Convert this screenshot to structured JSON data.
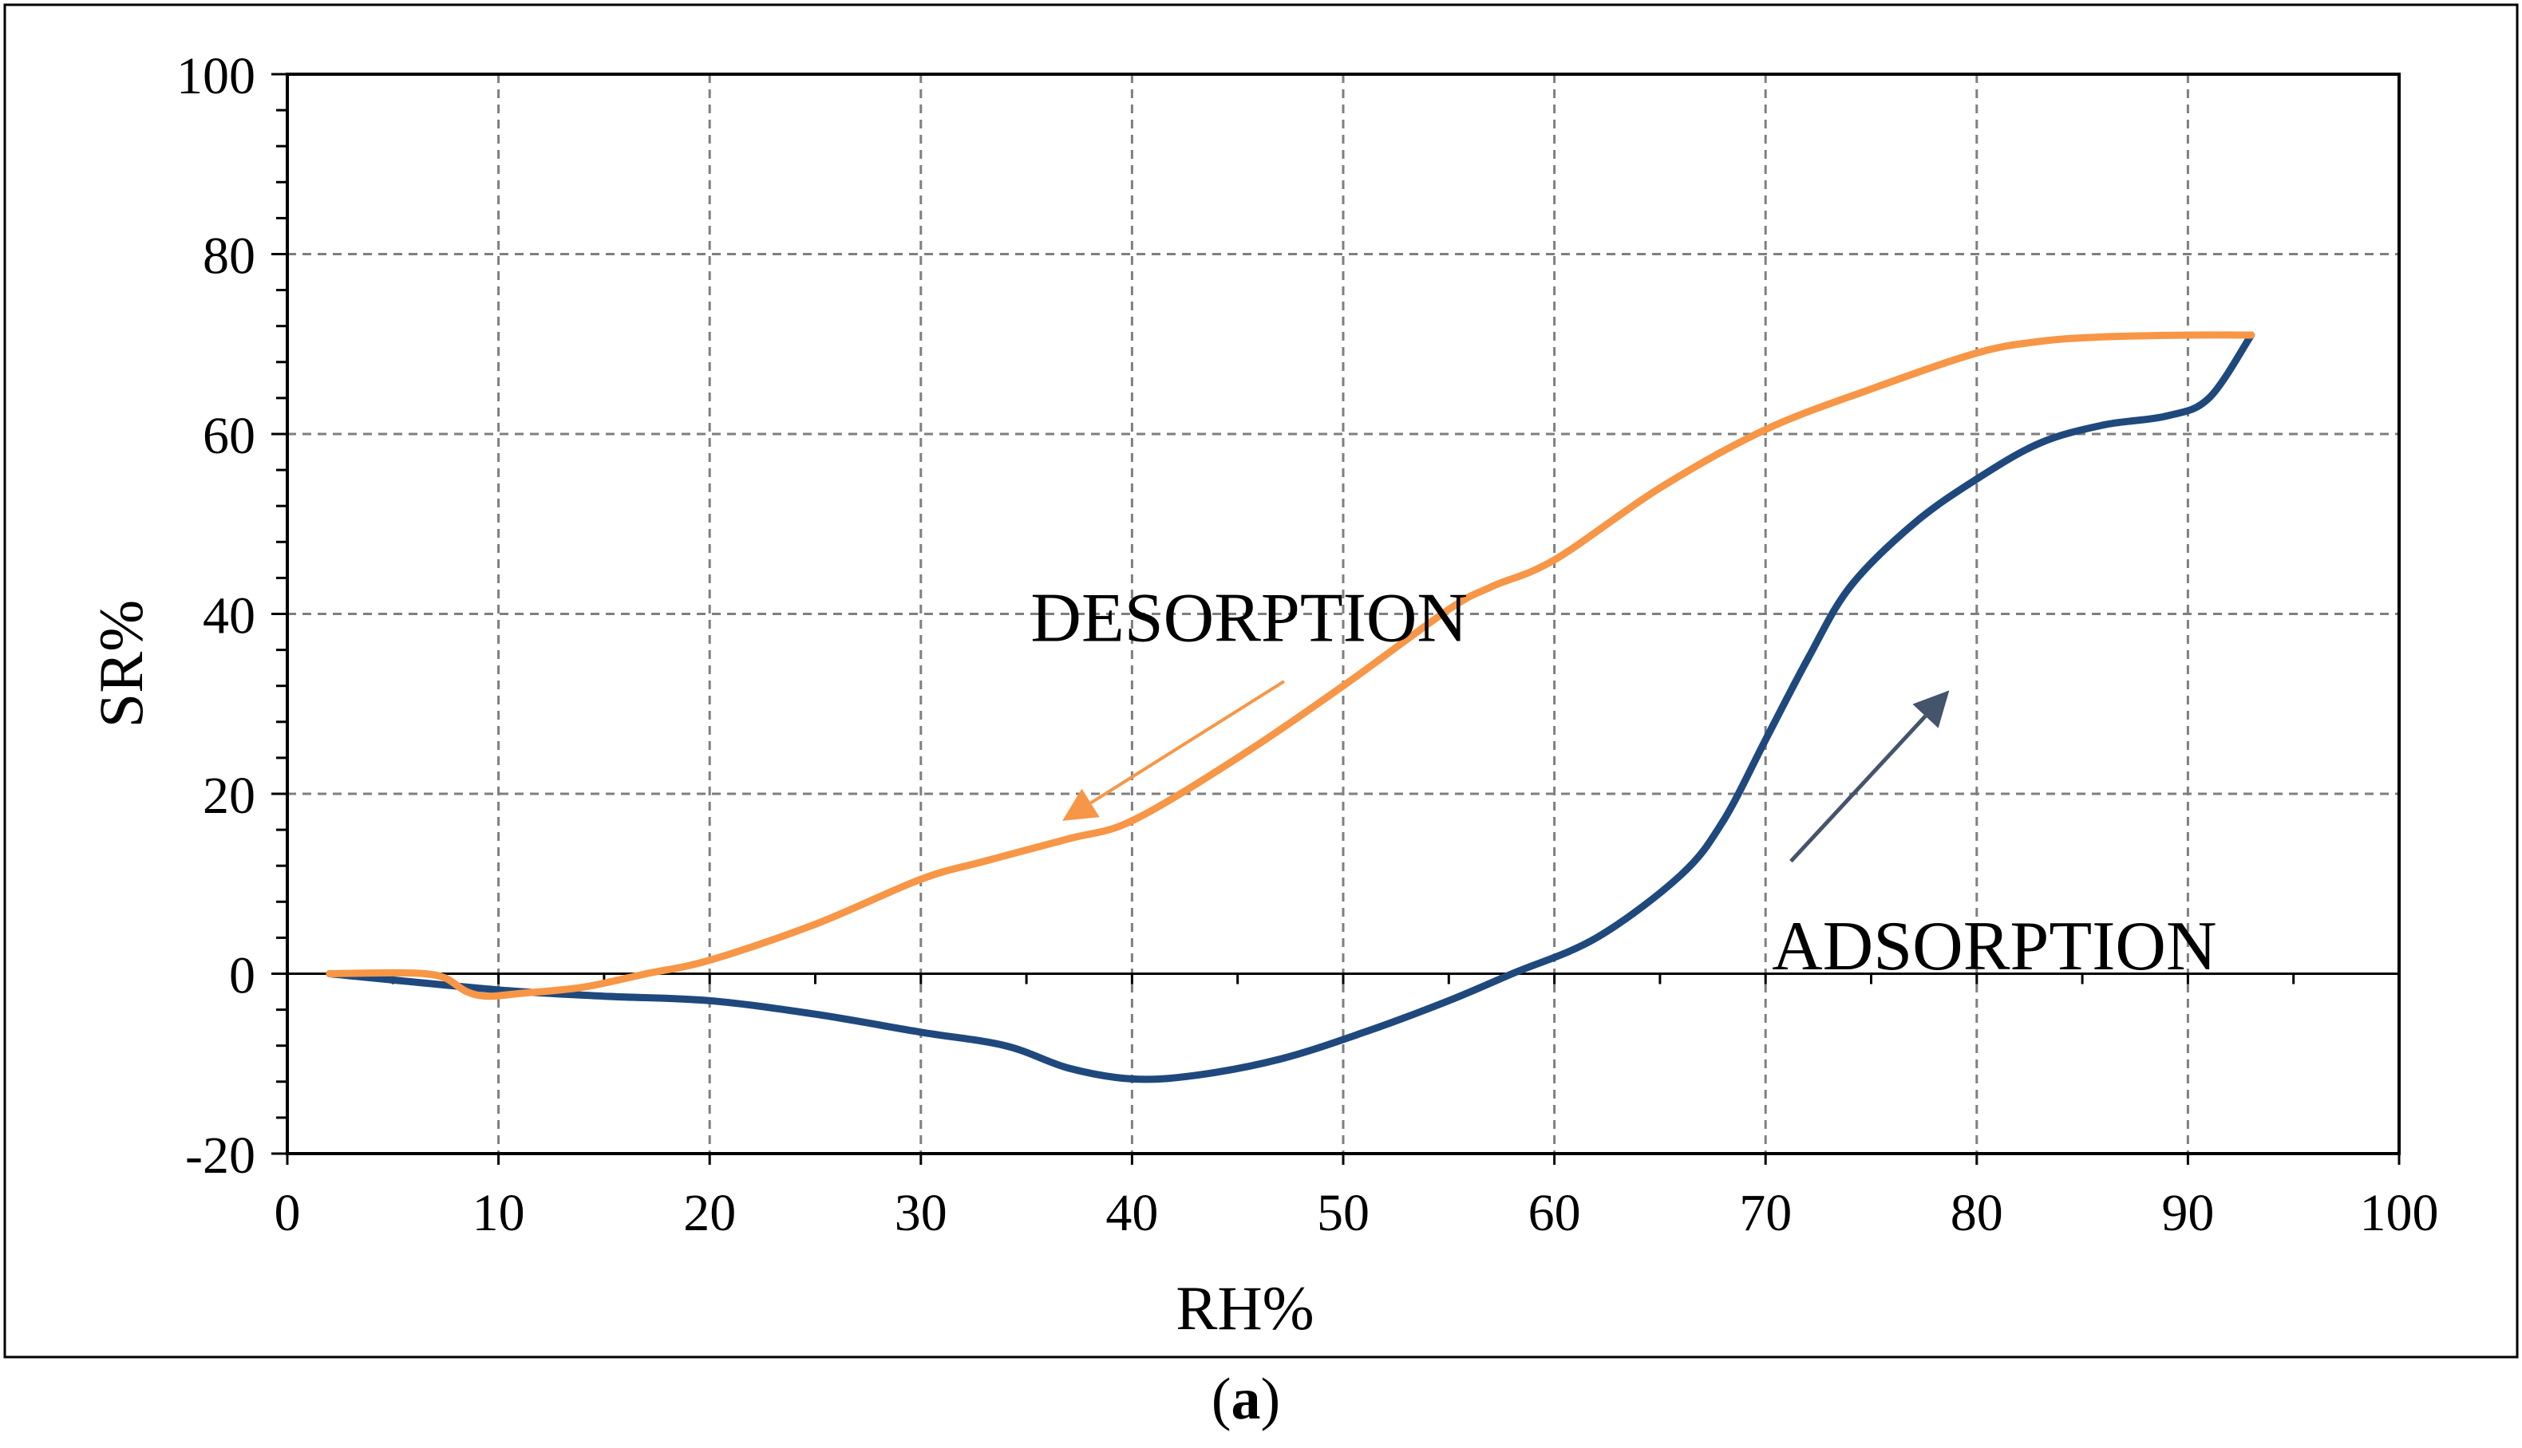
{
  "chart_data": {
    "type": "line",
    "xlabel": "RH%",
    "ylabel": "SR%",
    "xlim": [
      0,
      100
    ],
    "ylim": [
      -20,
      100
    ],
    "x_ticks": [
      0,
      10,
      20,
      30,
      40,
      50,
      60,
      70,
      80,
      90,
      100
    ],
    "y_ticks": [
      -20,
      0,
      20,
      40,
      60,
      80,
      100
    ],
    "grid": true,
    "caption_text": "a",
    "colors": {
      "adsorption": "#1F497D",
      "desorption": "#F79646",
      "adsorption_arrow": "#44546A"
    },
    "series": [
      {
        "name": "ADSORPTION",
        "points": [
          [
            2,
            0
          ],
          [
            10,
            -1.8
          ],
          [
            15,
            -2.5
          ],
          [
            20,
            -3
          ],
          [
            25,
            -4.5
          ],
          [
            30,
            -6.5
          ],
          [
            34,
            -8
          ],
          [
            37,
            -10.5
          ],
          [
            40,
            -11.7
          ],
          [
            43,
            -11.3
          ],
          [
            47,
            -9.5
          ],
          [
            51,
            -6.5
          ],
          [
            55,
            -3
          ],
          [
            58,
            0
          ],
          [
            62,
            4
          ],
          [
            66,
            11
          ],
          [
            68,
            17
          ],
          [
            70,
            26
          ],
          [
            72,
            35
          ],
          [
            74,
            43
          ],
          [
            77,
            50
          ],
          [
            80,
            55
          ],
          [
            83,
            59
          ],
          [
            86,
            61
          ],
          [
            89,
            62
          ],
          [
            91,
            64
          ],
          [
            93,
            71
          ]
        ]
      },
      {
        "name": "DESORPTION",
        "points": [
          [
            93,
            71
          ],
          [
            90,
            71
          ],
          [
            86,
            70.8
          ],
          [
            83,
            70.3
          ],
          [
            80,
            69
          ],
          [
            75,
            65
          ],
          [
            70,
            60.5
          ],
          [
            65,
            54
          ],
          [
            60,
            46
          ],
          [
            57,
            43
          ],
          [
            55,
            40.5
          ],
          [
            50,
            32
          ],
          [
            45,
            24
          ],
          [
            40,
            17
          ],
          [
            37,
            15
          ],
          [
            33,
            12.5
          ],
          [
            30,
            10.5
          ],
          [
            25,
            5.5
          ],
          [
            20,
            1.5
          ],
          [
            17,
            0
          ],
          [
            14,
            -1.5
          ],
          [
            11,
            -2.2
          ],
          [
            9.5,
            -2.5
          ],
          [
            8.5,
            -2
          ],
          [
            7.5,
            -0.5
          ],
          [
            6.5,
            0
          ],
          [
            5,
            0.1
          ],
          [
            2,
            0
          ]
        ]
      }
    ]
  }
}
